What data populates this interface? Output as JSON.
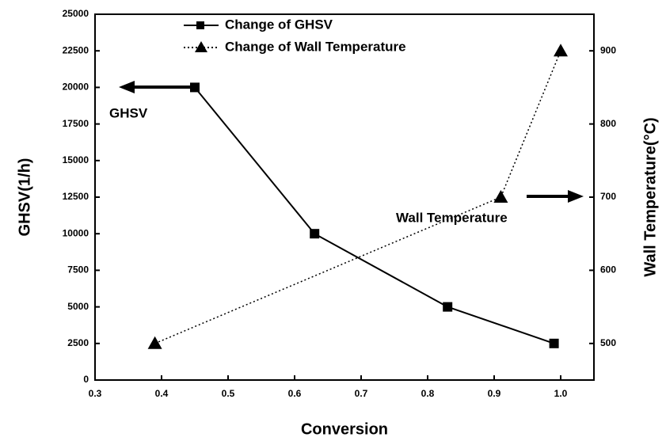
{
  "chart_data": {
    "type": "line",
    "xlabel": "Conversion",
    "ylabel": "GHSV(1/h)",
    "y2label": "Wall Temperature(°C)",
    "annotations": [
      "GHSV",
      "Wall Temperature"
    ],
    "xlim": [
      0.3,
      1.05
    ],
    "xticks": [
      0.3,
      0.4,
      0.5,
      0.6,
      0.7,
      0.8,
      0.9,
      {
        "value": 1,
        "label": "1.0"
      }
    ],
    "ylim": [
      0,
      25000
    ],
    "yticks": [
      0,
      2500,
      5000,
      7500,
      10000,
      12500,
      15000,
      17500,
      20000,
      22500,
      25000
    ],
    "y2lim": [
      450,
      950
    ],
    "y2ticks": [
      500,
      600,
      700,
      800,
      900
    ],
    "series": [
      {
        "name": "Change of GHSV",
        "color": "#000000",
        "marker": "square",
        "dash": "solid",
        "x": [
          0.45,
          0.63,
          0.83,
          0.99
        ],
        "values": [
          20000,
          10000,
          5000,
          2500
        ]
      },
      {
        "name": "Change of Wall Temperature",
        "color": "#000000",
        "marker": "triangle",
        "dash": "dotted",
        "axis": "y2",
        "x": [
          0.39,
          0.91,
          1.0
        ],
        "values": [
          500,
          700,
          900
        ]
      }
    ]
  }
}
